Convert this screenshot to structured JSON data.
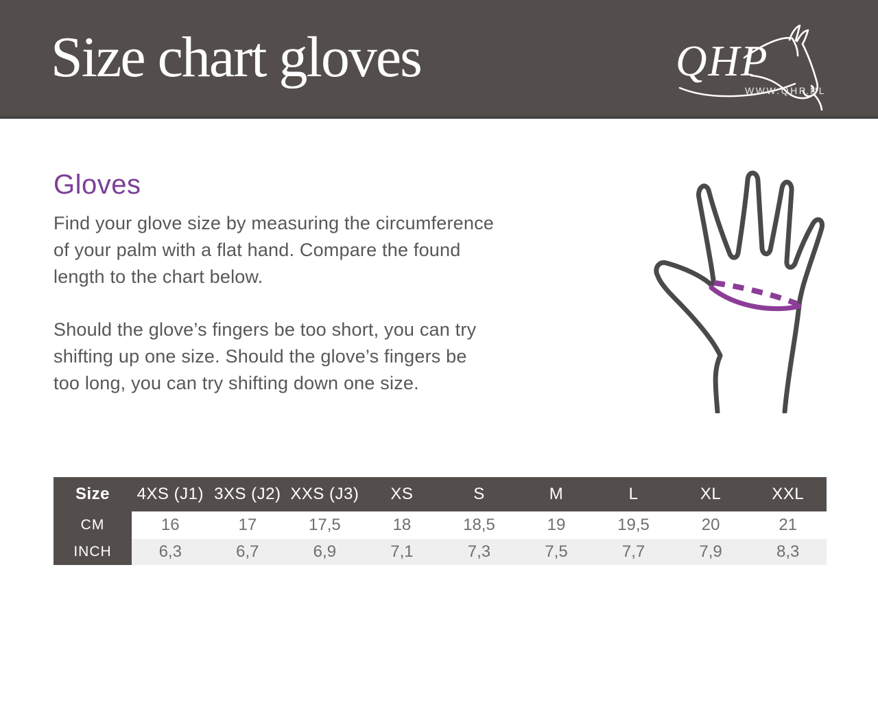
{
  "header": {
    "title": "Size chart gloves",
    "logo_text": "QHP",
    "logo_url": "WWW.QHP.NL"
  },
  "content": {
    "heading": "Gloves",
    "paragraph1": "Find your glove size by measuring the circumference\nof your palm with a flat hand. Compare the found\nlength to the chart below.",
    "paragraph2": "Should the glove’s fingers be too short, you can try\nshifting up one size. Should the glove’s fingers be\ntoo long, you can try shifting down one size."
  },
  "size_table": {
    "corner_label": "Size",
    "columns": [
      "4XS (J1)",
      "3XS (J2)",
      "XXS (J3)",
      "XS",
      "S",
      "M",
      "L",
      "XL",
      "XXL"
    ],
    "rows": [
      {
        "label": "CM",
        "values": [
          "16",
          "17",
          "17,5",
          "18",
          "18,5",
          "19",
          "19,5",
          "20",
          "21"
        ]
      },
      {
        "label": "INCH",
        "values": [
          "6,3",
          "6,7",
          "6,9",
          "7,1",
          "7,3",
          "7,5",
          "7,7",
          "7,9",
          "8,3"
        ]
      }
    ]
  },
  "icons": {
    "horse_logo": "horse-head-outline",
    "hand_diagram": "open-hand-with-palm-measurement-line"
  },
  "colors": {
    "banner_gray": "#534e4b",
    "accent_purple": "#7b3f98",
    "measure_line_purple": "#8c3d97",
    "hand_outline_gray": "#4a4a4a",
    "row_alt_gray": "#f0eff0"
  }
}
